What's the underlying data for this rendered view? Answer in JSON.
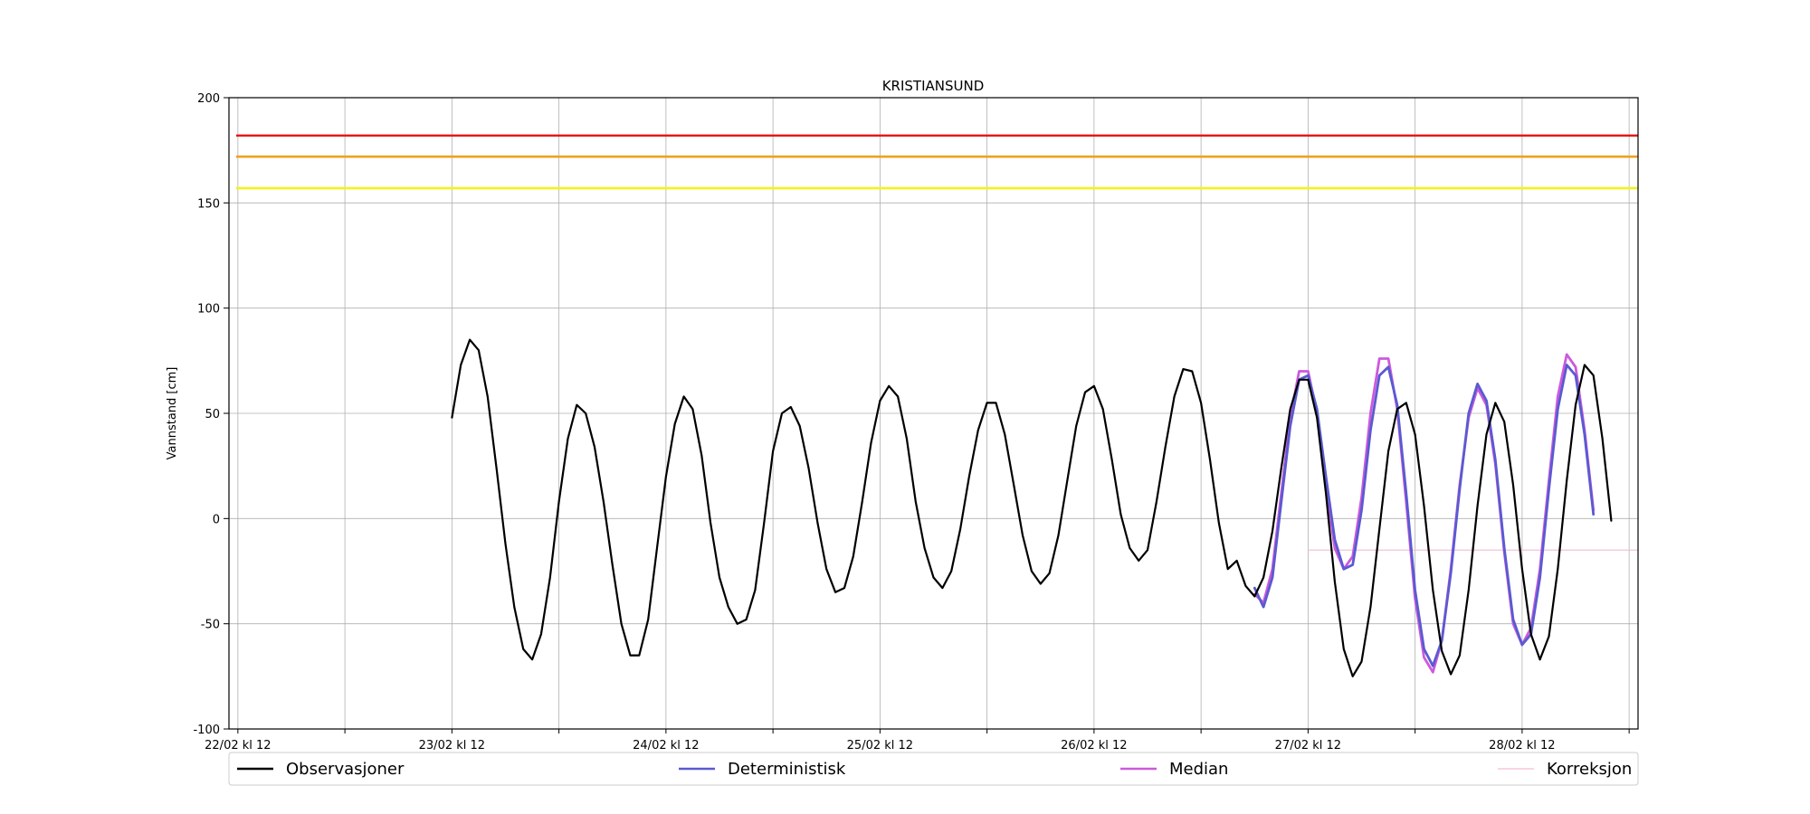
{
  "chart_data": {
    "type": "line",
    "title": "KRISTIANSUND",
    "xlabel": "",
    "ylabel": "Vannstand [cm]",
    "ylim": [
      -100,
      200
    ],
    "xlim": [
      "2026-02-22T11:00",
      "2026-03-01T01:00"
    ],
    "yticks": [
      -100,
      -50,
      0,
      50,
      100,
      150,
      200
    ],
    "xticks": [
      {
        "t": "2026-02-22T12:00",
        "label": "22/02 kl 12"
      },
      {
        "t": "2026-02-23T00:00",
        "label": ""
      },
      {
        "t": "2026-02-23T12:00",
        "label": "23/02 kl 12"
      },
      {
        "t": "2026-02-24T00:00",
        "label": ""
      },
      {
        "t": "2026-02-24T12:00",
        "label": "24/02 kl 12"
      },
      {
        "t": "2026-02-25T00:00",
        "label": ""
      },
      {
        "t": "2026-02-25T12:00",
        "label": "25/02 kl 12"
      },
      {
        "t": "2026-02-26T00:00",
        "label": ""
      },
      {
        "t": "2026-02-26T12:00",
        "label": "26/02 kl 12"
      },
      {
        "t": "2026-02-27T00:00",
        "label": ""
      },
      {
        "t": "2026-02-27T12:00",
        "label": "27/02 kl 12"
      },
      {
        "t": "2026-02-28T00:00",
        "label": ""
      },
      {
        "t": "2026-02-28T12:00",
        "label": "28/02 kl 12"
      },
      {
        "t": "2026-03-01T00:00",
        "label": ""
      }
    ],
    "grid": true,
    "legend_position": "bottom",
    "thresholds": [
      {
        "value": 182,
        "color": "#e31a1c"
      },
      {
        "value": 172,
        "color": "#f0a020"
      },
      {
        "value": 157,
        "color": "#f2f21c"
      }
    ],
    "series": [
      {
        "name": "Observasjoner",
        "color": "#000000",
        "points": [
          [
            "2026-02-23T12:00",
            48
          ],
          [
            "2026-02-23T13:00",
            73
          ],
          [
            "2026-02-23T14:00",
            85
          ],
          [
            "2026-02-23T15:00",
            80
          ],
          [
            "2026-02-23T16:00",
            58
          ],
          [
            "2026-02-23T17:00",
            24
          ],
          [
            "2026-02-23T18:00",
            -12
          ],
          [
            "2026-02-23T19:00",
            -42
          ],
          [
            "2026-02-23T20:00",
            -62
          ],
          [
            "2026-02-23T21:00",
            -67
          ],
          [
            "2026-02-23T22:00",
            -55
          ],
          [
            "2026-02-23T23:00",
            -28
          ],
          [
            "2026-02-24T00:00",
            8
          ],
          [
            "2026-02-24T01:00",
            38
          ],
          [
            "2026-02-24T02:00",
            54
          ],
          [
            "2026-02-24T03:00",
            50
          ],
          [
            "2026-02-24T04:00",
            34
          ],
          [
            "2026-02-24T05:00",
            8
          ],
          [
            "2026-02-24T06:00",
            -22
          ],
          [
            "2026-02-24T07:00",
            -50
          ],
          [
            "2026-02-24T08:00",
            -65
          ],
          [
            "2026-02-24T09:00",
            -65
          ],
          [
            "2026-02-24T10:00",
            -48
          ],
          [
            "2026-02-24T11:00",
            -14
          ],
          [
            "2026-02-24T12:00",
            20
          ],
          [
            "2026-02-24T13:00",
            45
          ],
          [
            "2026-02-24T14:00",
            58
          ],
          [
            "2026-02-24T15:00",
            52
          ],
          [
            "2026-02-24T16:00",
            30
          ],
          [
            "2026-02-24T17:00",
            -2
          ],
          [
            "2026-02-24T18:00",
            -28
          ],
          [
            "2026-02-24T19:00",
            -42
          ],
          [
            "2026-02-24T20:00",
            -50
          ],
          [
            "2026-02-24T21:00",
            -48
          ],
          [
            "2026-02-24T22:00",
            -34
          ],
          [
            "2026-02-24T23:00",
            -2
          ],
          [
            "2026-02-25T00:00",
            32
          ],
          [
            "2026-02-25T01:00",
            50
          ],
          [
            "2026-02-25T02:00",
            53
          ],
          [
            "2026-02-25T03:00",
            44
          ],
          [
            "2026-02-25T04:00",
            24
          ],
          [
            "2026-02-25T05:00",
            -2
          ],
          [
            "2026-02-25T06:00",
            -24
          ],
          [
            "2026-02-25T07:00",
            -35
          ],
          [
            "2026-02-25T08:00",
            -33
          ],
          [
            "2026-02-25T09:00",
            -18
          ],
          [
            "2026-02-25T10:00",
            8
          ],
          [
            "2026-02-25T11:00",
            36
          ],
          [
            "2026-02-25T12:00",
            56
          ],
          [
            "2026-02-25T13:00",
            63
          ],
          [
            "2026-02-25T14:00",
            58
          ],
          [
            "2026-02-25T15:00",
            38
          ],
          [
            "2026-02-25T16:00",
            8
          ],
          [
            "2026-02-25T17:00",
            -14
          ],
          [
            "2026-02-25T18:00",
            -28
          ],
          [
            "2026-02-25T19:00",
            -33
          ],
          [
            "2026-02-25T20:00",
            -25
          ],
          [
            "2026-02-25T21:00",
            -5
          ],
          [
            "2026-02-25T22:00",
            20
          ],
          [
            "2026-02-25T23:00",
            42
          ],
          [
            "2026-02-26T00:00",
            55
          ],
          [
            "2026-02-26T01:00",
            55
          ],
          [
            "2026-02-26T02:00",
            40
          ],
          [
            "2026-02-26T03:00",
            16
          ],
          [
            "2026-02-26T04:00",
            -8
          ],
          [
            "2026-02-26T05:00",
            -25
          ],
          [
            "2026-02-26T06:00",
            -31
          ],
          [
            "2026-02-26T07:00",
            -26
          ],
          [
            "2026-02-26T08:00",
            -8
          ],
          [
            "2026-02-26T09:00",
            18
          ],
          [
            "2026-02-26T10:00",
            44
          ],
          [
            "2026-02-26T11:00",
            60
          ],
          [
            "2026-02-26T12:00",
            63
          ],
          [
            "2026-02-26T13:00",
            52
          ],
          [
            "2026-02-26T14:00",
            28
          ],
          [
            "2026-02-26T15:00",
            2
          ],
          [
            "2026-02-26T16:00",
            -14
          ],
          [
            "2026-02-26T17:00",
            -20
          ],
          [
            "2026-02-26T18:00",
            -15
          ],
          [
            "2026-02-26T19:00",
            8
          ],
          [
            "2026-02-26T20:00",
            34
          ],
          [
            "2026-02-26T21:00",
            58
          ],
          [
            "2026-02-26T22:00",
            71
          ],
          [
            "2026-02-26T23:00",
            70
          ],
          [
            "2026-02-27T00:00",
            55
          ],
          [
            "2026-02-27T01:00",
            28
          ],
          [
            "2026-02-27T02:00",
            -2
          ],
          [
            "2026-02-27T03:00",
            -24
          ],
          [
            "2026-02-27T04:00",
            -20
          ],
          [
            "2026-02-27T05:00",
            -32
          ],
          [
            "2026-02-27T06:00",
            -37
          ],
          [
            "2026-02-27T07:00",
            -28
          ],
          [
            "2026-02-27T08:00",
            -6
          ],
          [
            "2026-02-27T09:00",
            24
          ],
          [
            "2026-02-27T10:00",
            52
          ],
          [
            "2026-02-27T11:00",
            66
          ],
          [
            "2026-02-27T12:00",
            66
          ],
          [
            "2026-02-27T13:00",
            48
          ],
          [
            "2026-02-27T14:00",
            12
          ],
          [
            "2026-02-27T15:00",
            -30
          ],
          [
            "2026-02-27T16:00",
            -62
          ],
          [
            "2026-02-27T17:00",
            -75
          ],
          [
            "2026-02-27T18:00",
            -68
          ],
          [
            "2026-02-27T19:00",
            -42
          ],
          [
            "2026-02-27T20:00",
            -5
          ],
          [
            "2026-02-27T21:00",
            32
          ],
          [
            "2026-02-27T22:00",
            52
          ],
          [
            "2026-02-27T23:00",
            55
          ],
          [
            "2026-02-28T00:00",
            40
          ],
          [
            "2026-02-28T01:00",
            6
          ],
          [
            "2026-02-28T02:00",
            -34
          ],
          [
            "2026-02-28T03:00",
            -63
          ],
          [
            "2026-02-28T04:00",
            -74
          ],
          [
            "2026-02-28T05:00",
            -65
          ],
          [
            "2026-02-28T06:00",
            -34
          ],
          [
            "2026-02-28T07:00",
            6
          ],
          [
            "2026-02-28T08:00",
            40
          ],
          [
            "2026-02-28T09:00",
            55
          ],
          [
            "2026-02-28T10:00",
            46
          ],
          [
            "2026-02-28T11:00",
            16
          ],
          [
            "2026-02-28T12:00",
            -24
          ],
          [
            "2026-02-28T13:00",
            -55
          ],
          [
            "2026-02-28T14:00",
            -67
          ],
          [
            "2026-02-28T15:00",
            -56
          ],
          [
            "2026-02-28T16:00",
            -24
          ],
          [
            "2026-02-28T17:00",
            18
          ],
          [
            "2026-02-28T18:00",
            54
          ],
          [
            "2026-02-28T19:00",
            73
          ],
          [
            "2026-02-28T20:00",
            68
          ],
          [
            "2026-02-28T21:00",
            38
          ],
          [
            "2026-02-28T22:00",
            -1
          ]
        ]
      },
      {
        "name": "Deterministisk",
        "color": "#5a5ad2",
        "points": [
          [
            "2026-02-27T06:00",
            -33
          ],
          [
            "2026-02-27T07:00",
            -42
          ],
          [
            "2026-02-27T08:00",
            -28
          ],
          [
            "2026-02-27T09:00",
            8
          ],
          [
            "2026-02-27T10:00",
            44
          ],
          [
            "2026-02-27T11:00",
            66
          ],
          [
            "2026-02-27T12:00",
            68
          ],
          [
            "2026-02-27T13:00",
            52
          ],
          [
            "2026-02-27T14:00",
            20
          ],
          [
            "2026-02-27T15:00",
            -10
          ],
          [
            "2026-02-27T16:00",
            -24
          ],
          [
            "2026-02-27T17:00",
            -22
          ],
          [
            "2026-02-27T18:00",
            4
          ],
          [
            "2026-02-27T19:00",
            42
          ],
          [
            "2026-02-27T20:00",
            68
          ],
          [
            "2026-02-27T21:00",
            72
          ],
          [
            "2026-02-27T22:00",
            54
          ],
          [
            "2026-02-27T23:00",
            12
          ],
          [
            "2026-02-28T00:00",
            -34
          ],
          [
            "2026-02-28T01:00",
            -62
          ],
          [
            "2026-02-28T02:00",
            -70
          ],
          [
            "2026-02-28T03:00",
            -58
          ],
          [
            "2026-02-28T04:00",
            -26
          ],
          [
            "2026-02-28T05:00",
            14
          ],
          [
            "2026-02-28T06:00",
            50
          ],
          [
            "2026-02-28T07:00",
            64
          ],
          [
            "2026-02-28T08:00",
            56
          ],
          [
            "2026-02-28T09:00",
            28
          ],
          [
            "2026-02-28T10:00",
            -14
          ],
          [
            "2026-02-28T11:00",
            -48
          ],
          [
            "2026-02-28T12:00",
            -60
          ],
          [
            "2026-02-28T13:00",
            -55
          ],
          [
            "2026-02-28T14:00",
            -28
          ],
          [
            "2026-02-28T15:00",
            14
          ],
          [
            "2026-02-28T16:00",
            52
          ],
          [
            "2026-02-28T17:00",
            73
          ],
          [
            "2026-02-28T18:00",
            68
          ],
          [
            "2026-02-28T19:00",
            40
          ],
          [
            "2026-02-28T20:00",
            2
          ]
        ]
      },
      {
        "name": "Median",
        "color": "#cc5adc",
        "points": [
          [
            "2026-02-27T06:00",
            -36
          ],
          [
            "2026-02-27T07:00",
            -40
          ],
          [
            "2026-02-27T08:00",
            -24
          ],
          [
            "2026-02-27T09:00",
            12
          ],
          [
            "2026-02-27T10:00",
            48
          ],
          [
            "2026-02-27T11:00",
            70
          ],
          [
            "2026-02-27T12:00",
            70
          ],
          [
            "2026-02-27T13:00",
            50
          ],
          [
            "2026-02-27T14:00",
            16
          ],
          [
            "2026-02-27T15:00",
            -14
          ],
          [
            "2026-02-27T16:00",
            -24
          ],
          [
            "2026-02-27T17:00",
            -18
          ],
          [
            "2026-02-27T18:00",
            10
          ],
          [
            "2026-02-27T19:00",
            50
          ],
          [
            "2026-02-27T20:00",
            76
          ],
          [
            "2026-02-27T21:00",
            76
          ],
          [
            "2026-02-27T22:00",
            52
          ],
          [
            "2026-02-27T23:00",
            8
          ],
          [
            "2026-02-28T00:00",
            -38
          ],
          [
            "2026-02-28T01:00",
            -66
          ],
          [
            "2026-02-28T02:00",
            -73
          ],
          [
            "2026-02-28T03:00",
            -58
          ],
          [
            "2026-02-28T04:00",
            -24
          ],
          [
            "2026-02-28T05:00",
            16
          ],
          [
            "2026-02-28T06:00",
            48
          ],
          [
            "2026-02-28T07:00",
            62
          ],
          [
            "2026-02-28T08:00",
            54
          ],
          [
            "2026-02-28T09:00",
            26
          ],
          [
            "2026-02-28T10:00",
            -16
          ],
          [
            "2026-02-28T11:00",
            -50
          ],
          [
            "2026-02-28T12:00",
            -60
          ],
          [
            "2026-02-28T13:00",
            -52
          ],
          [
            "2026-02-28T14:00",
            -24
          ],
          [
            "2026-02-28T15:00",
            18
          ],
          [
            "2026-02-28T16:00",
            58
          ],
          [
            "2026-02-28T17:00",
            78
          ],
          [
            "2026-02-28T18:00",
            72
          ],
          [
            "2026-02-28T19:00",
            42
          ],
          [
            "2026-02-28T20:00",
            4
          ]
        ]
      },
      {
        "name": "Korreksjon",
        "color": "#f4bcd4",
        "points": [
          [
            "2026-02-27T12:00",
            -15
          ],
          [
            "2026-03-01T01:00",
            -15
          ]
        ]
      }
    ]
  }
}
